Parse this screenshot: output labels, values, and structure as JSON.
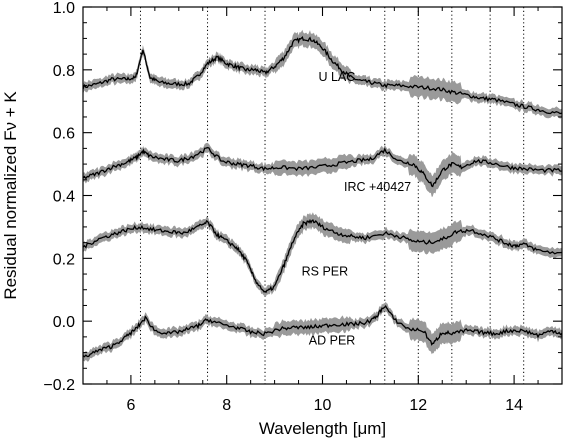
{
  "chart_data": {
    "type": "line",
    "title": "",
    "xlabel": "Wavelength [μm]",
    "ylabel": "Residual normalized Fν + K",
    "xlim": [
      5.0,
      15.0
    ],
    "ylim": [
      -0.2,
      1.0
    ],
    "x_ticks": [
      6,
      8,
      10,
      12,
      14
    ],
    "x_tick_labels": [
      "6",
      "8",
      "10",
      "12",
      "14"
    ],
    "y_ticks": [
      -0.2,
      0.0,
      0.2,
      0.4,
      0.6,
      0.8,
      1.0
    ],
    "y_tick_labels": [
      "−0.2",
      "0.0",
      "0.2",
      "0.4",
      "0.6",
      "0.8",
      "1.0"
    ],
    "vertical_reference_lines": [
      6.2,
      7.6,
      8.8,
      11.3,
      12.0,
      12.7,
      13.5,
      14.2
    ],
    "grid": false,
    "legend": "none",
    "colors": {
      "line": "#000000",
      "uncertainty_band": "#9a9a9a",
      "reference_lines": "#000000"
    },
    "series": [
      {
        "name": "U LAC",
        "x": [
          5.0,
          5.3,
          5.6,
          5.9,
          6.1,
          6.25,
          6.4,
          6.6,
          6.9,
          7.2,
          7.4,
          7.6,
          7.8,
          8.0,
          8.2,
          8.4,
          8.6,
          8.8,
          9.0,
          9.2,
          9.4,
          9.6,
          9.8,
          10.0,
          10.2,
          10.4,
          10.6,
          10.8,
          11.0,
          11.3,
          11.6,
          12.0,
          12.4,
          12.7,
          13.0,
          13.3,
          13.6,
          14.0,
          14.3,
          14.6,
          15.0
        ],
        "y": [
          0.745,
          0.755,
          0.77,
          0.77,
          0.775,
          0.865,
          0.775,
          0.76,
          0.755,
          0.755,
          0.78,
          0.82,
          0.84,
          0.82,
          0.81,
          0.8,
          0.8,
          0.79,
          0.81,
          0.84,
          0.89,
          0.9,
          0.895,
          0.87,
          0.83,
          0.8,
          0.775,
          0.765,
          0.76,
          0.75,
          0.75,
          0.745,
          0.74,
          0.73,
          0.72,
          0.71,
          0.705,
          0.69,
          0.68,
          0.67,
          0.66
        ]
      },
      {
        "name": "IRC +40427",
        "x": [
          5.0,
          5.3,
          5.6,
          5.9,
          6.1,
          6.25,
          6.4,
          6.7,
          7.0,
          7.3,
          7.6,
          7.9,
          8.2,
          8.5,
          8.8,
          9.1,
          9.5,
          9.9,
          10.3,
          10.7,
          11.0,
          11.3,
          11.6,
          11.9,
          12.1,
          12.3,
          12.5,
          12.7,
          12.9,
          13.2,
          13.5,
          13.9,
          14.2,
          14.6,
          15.0
        ],
        "y": [
          0.455,
          0.47,
          0.49,
          0.505,
          0.52,
          0.54,
          0.525,
          0.515,
          0.51,
          0.525,
          0.55,
          0.51,
          0.5,
          0.495,
          0.485,
          0.49,
          0.485,
          0.49,
          0.5,
          0.51,
          0.515,
          0.545,
          0.51,
          0.5,
          0.47,
          0.43,
          0.48,
          0.5,
          0.49,
          0.51,
          0.505,
          0.49,
          0.485,
          0.48,
          0.48
        ]
      },
      {
        "name": "RS PER",
        "x": [
          5.0,
          5.3,
          5.6,
          5.9,
          6.2,
          6.5,
          6.8,
          7.1,
          7.4,
          7.6,
          7.8,
          8.0,
          8.2,
          8.4,
          8.6,
          8.8,
          9.0,
          9.2,
          9.4,
          9.6,
          9.8,
          10.0,
          10.3,
          10.6,
          10.9,
          11.3,
          11.6,
          11.9,
          12.2,
          12.5,
          12.8,
          13.1,
          13.5,
          13.8,
          14.0,
          14.2,
          14.5,
          15.0
        ],
        "y": [
          0.235,
          0.26,
          0.275,
          0.29,
          0.3,
          0.29,
          0.285,
          0.28,
          0.3,
          0.315,
          0.275,
          0.255,
          0.235,
          0.195,
          0.13,
          0.09,
          0.11,
          0.18,
          0.26,
          0.31,
          0.32,
          0.3,
          0.28,
          0.27,
          0.265,
          0.28,
          0.27,
          0.255,
          0.25,
          0.26,
          0.285,
          0.29,
          0.27,
          0.25,
          0.24,
          0.245,
          0.225,
          0.215
        ]
      },
      {
        "name": "AD PER",
        "x": [
          5.0,
          5.3,
          5.6,
          5.9,
          6.1,
          6.3,
          6.5,
          6.8,
          7.1,
          7.4,
          7.6,
          7.9,
          8.2,
          8.5,
          8.8,
          9.1,
          9.4,
          9.7,
          10.0,
          10.3,
          10.6,
          10.9,
          11.1,
          11.3,
          11.5,
          11.8,
          12.1,
          12.3,
          12.5,
          12.7,
          13.0,
          13.3,
          13.6,
          13.9,
          14.2,
          14.5,
          14.8,
          15.0
        ],
        "y": [
          -0.115,
          -0.095,
          -0.08,
          -0.05,
          -0.025,
          0.01,
          -0.03,
          -0.04,
          -0.03,
          -0.015,
          0.005,
          -0.01,
          -0.02,
          -0.035,
          -0.04,
          -0.025,
          -0.02,
          -0.02,
          -0.015,
          -0.01,
          -0.01,
          -0.005,
          0.01,
          0.05,
          0.005,
          -0.025,
          -0.03,
          -0.075,
          -0.035,
          -0.04,
          -0.03,
          -0.035,
          -0.04,
          -0.03,
          -0.03,
          -0.045,
          -0.03,
          -0.04
        ]
      }
    ]
  }
}
